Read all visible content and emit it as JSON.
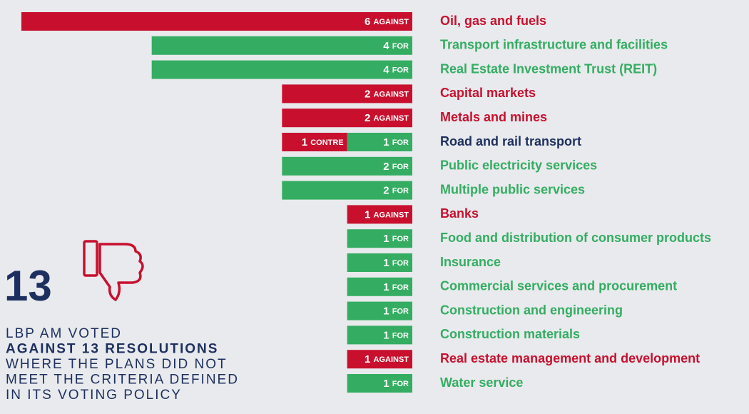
{
  "chart_data": {
    "type": "bar",
    "orientation": "horizontal",
    "stacked": true,
    "categories": [
      "Oil, gas and fuels",
      "Transport infrastructure and facilities",
      "Real Estate Investment Trust (REIT)",
      "Capital markets",
      "Metals and mines",
      "Road and rail transport",
      "Public electricity services",
      "Multiple public services",
      "Banks",
      "Food and distribution of consumer products",
      "Insurance",
      "Commercial services and procurement",
      "Construction and engineering",
      "Construction materials",
      "Real estate management and development",
      "Water service"
    ],
    "xlim": [
      0,
      6
    ],
    "series": [
      {
        "name": "AGAINST",
        "color": "#c8102e",
        "values": [
          6,
          null,
          null,
          2,
          2,
          1,
          null,
          null,
          1,
          null,
          null,
          null,
          null,
          null,
          1,
          null
        ],
        "value_labels": [
          "6 AGAINST",
          null,
          null,
          "2 AGAINST",
          "2 AGAINST",
          "1 CONTRE",
          null,
          null,
          "1 AGAINST",
          null,
          null,
          null,
          null,
          null,
          "1 AGAINST",
          null
        ]
      },
      {
        "name": "FOR",
        "color": "#34ad62",
        "values": [
          null,
          4,
          4,
          null,
          null,
          1,
          2,
          2,
          null,
          1,
          1,
          1,
          1,
          1,
          null,
          1
        ],
        "value_labels": [
          null,
          "4 FOR",
          "4 FOR",
          null,
          null,
          "1 FOR",
          "2 FOR",
          "2 FOR",
          null,
          "1 FOR",
          "1 FOR",
          "1 FOR",
          "1 FOR",
          "1 FOR",
          null,
          "1 FOR"
        ]
      }
    ],
    "mixed_color": "#1d2f5e",
    "annotation": {
      "number": "13",
      "lines": [
        "LBP AM VOTED",
        "AGAINST 13 RESOLUTIONS",
        "WHERE THE PLANS DID NOT",
        "MEET THE CRITERIA DEFINED",
        "IN ITS VOTING POLICY"
      ]
    }
  }
}
